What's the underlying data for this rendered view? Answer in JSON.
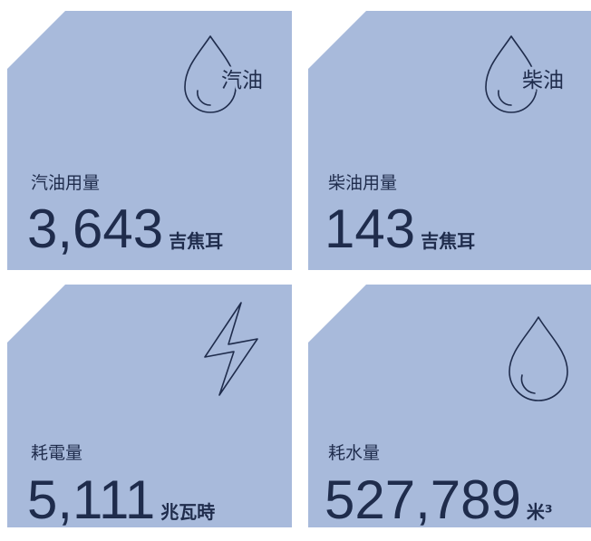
{
  "tiles": [
    {
      "icon_text": "汽油",
      "label": "汽油用量",
      "value": "3,643",
      "unit": "吉焦耳"
    },
    {
      "icon_text": "柴油",
      "label": "柴油用量",
      "value": "143",
      "unit": "吉焦耳"
    },
    {
      "label": "耗電量",
      "value": "5,111",
      "unit": "兆瓦時"
    },
    {
      "label": "耗水量",
      "value": "527,789",
      "unit": "米³"
    }
  ]
}
